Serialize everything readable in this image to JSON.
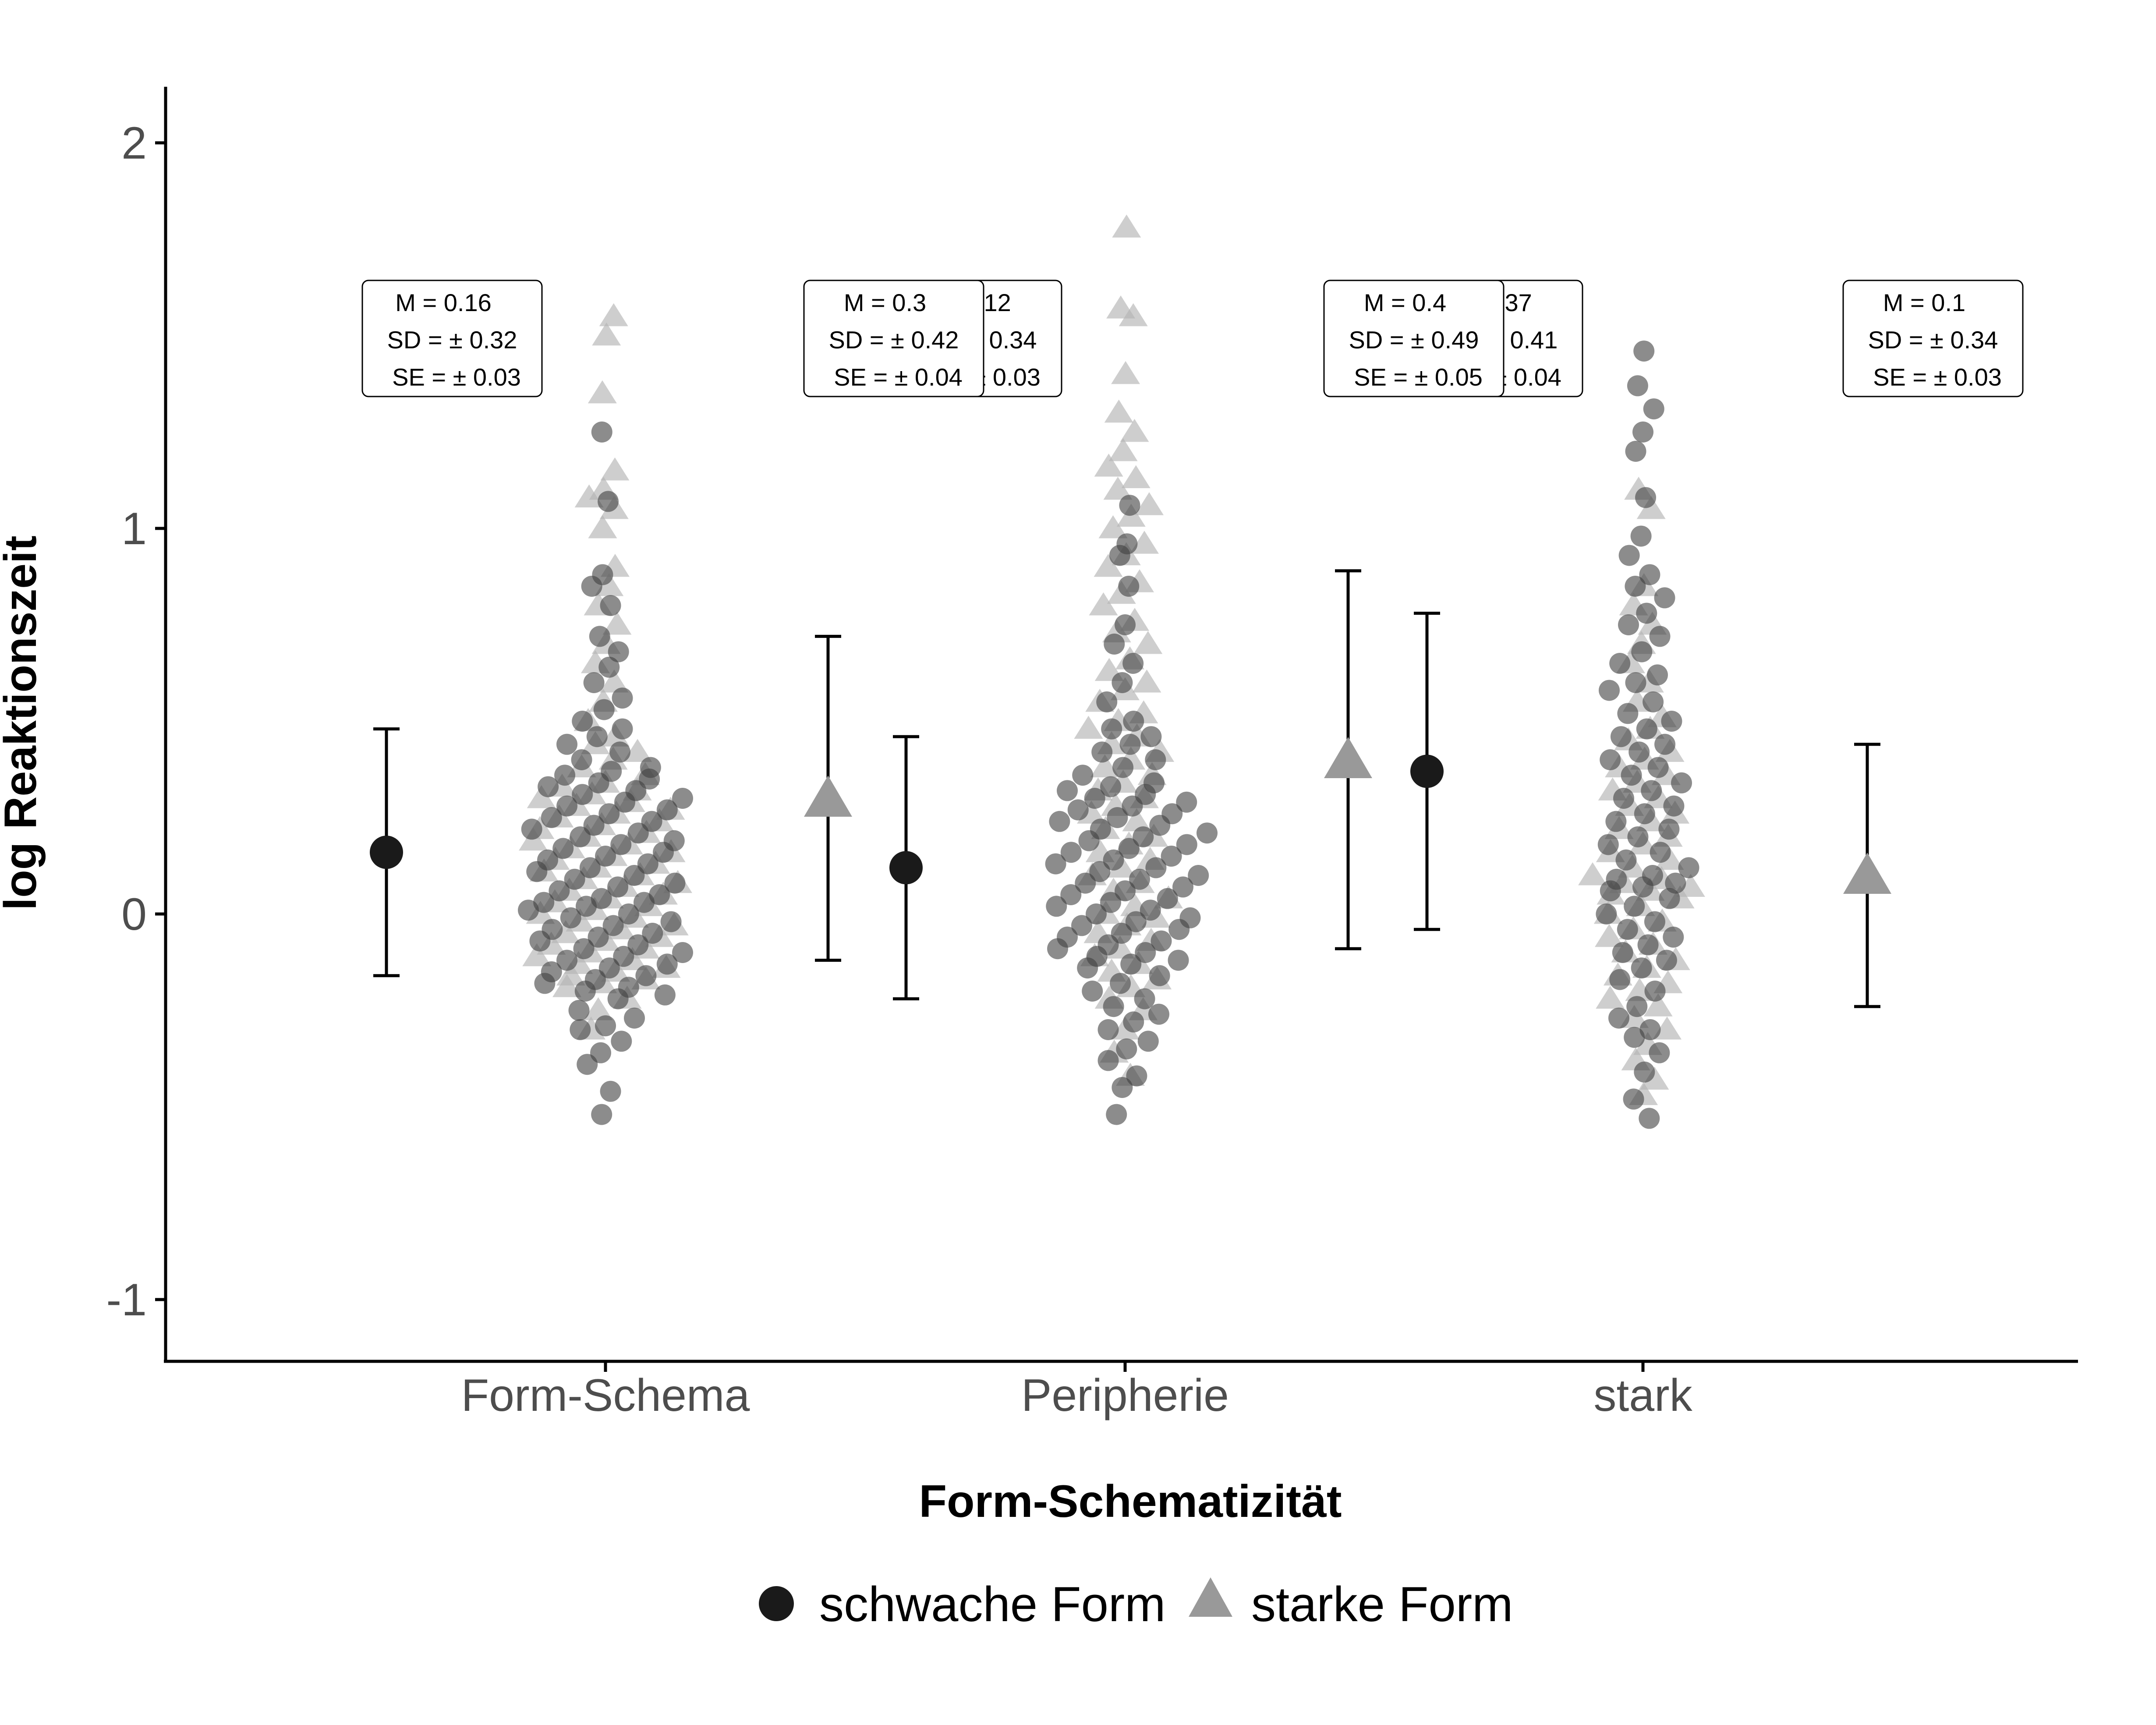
{
  "chart_data": {
    "type": "scatter",
    "xlabel": "Form-Schematizität",
    "ylabel": "log Reaktionszeit",
    "ylim": [
      -1.15,
      2.15
    ],
    "yticks": [
      {
        "value": 2,
        "label": "2"
      },
      {
        "value": 1,
        "label": "1"
      },
      {
        "value": 0,
        "label": "0"
      },
      {
        "value": -1,
        "label": "-1"
      }
    ],
    "categories": [
      "Form-Schema",
      "Peripherie",
      "stark"
    ],
    "legend": {
      "placement": "bottom",
      "items": [
        {
          "label": "schwache Form",
          "shape": "circle",
          "color": "#1a1a1a"
        },
        {
          "label": "starke Form",
          "shape": "triangle",
          "color": "#999999"
        }
      ]
    },
    "colors": {
      "weak_points": "#404040",
      "strong_points": "#b3b3b3",
      "weak_mean": "#1a1a1a",
      "strong_mean": "#999999"
    },
    "series": [
      {
        "name": "schwache Form",
        "shape": "circle",
        "values": [
          {
            "category": "Form-Schema",
            "mean": 0.16,
            "sd": 0.32,
            "se": 0.03,
            "label_m": "M = 0.16",
            "label_sd": "SD = ±  0.32",
            "label_se": "SE = ±  0.03"
          },
          {
            "category": "Peripherie",
            "mean": 0.12,
            "sd": 0.34,
            "se": 0.03,
            "label_m": "M = 0.12",
            "label_sd": "SD = ±  0.34",
            "label_se": "SE = ±  0.03"
          },
          {
            "category": "stark",
            "mean": 0.37,
            "sd": 0.41,
            "se": 0.04,
            "label_m": "M = 0.37",
            "label_sd": "SD = ±  0.41",
            "label_se": "SE = ±  0.04"
          }
        ]
      },
      {
        "name": "starke Form",
        "shape": "triangle",
        "values": [
          {
            "category": "Form-Schema",
            "mean": 0.3,
            "sd": 0.42,
            "se": 0.04,
            "label_m": "M = 0.3",
            "label_sd": "SD = ±  0.42",
            "label_se": "SE = ±  0.04"
          },
          {
            "category": "Peripherie",
            "mean": 0.4,
            "sd": 0.49,
            "se": 0.05,
            "label_m": "M = 0.4",
            "label_sd": "SD = ±  0.49",
            "label_se": "SE = ±  0.05"
          },
          {
            "category": "stark",
            "mean": 0.1,
            "sd": 0.34,
            "se": 0.03,
            "label_m": "M = 0.1",
            "label_sd": "SD = ±  0.34",
            "label_se": "SE = ±  0.03"
          }
        ]
      }
    ],
    "points": {
      "Form-Schema": {
        "weak": [
          -0.52,
          -0.46,
          -0.39,
          -0.36,
          -0.33,
          -0.3,
          -0.29,
          -0.27,
          -0.25,
          -0.22,
          -0.21,
          -0.2,
          -0.19,
          -0.18,
          -0.17,
          -0.16,
          -0.15,
          -0.14,
          -0.13,
          -0.12,
          -0.11,
          -0.1,
          -0.09,
          -0.08,
          -0.07,
          -0.06,
          -0.05,
          -0.04,
          -0.03,
          -0.02,
          -0.01,
          0.0,
          0.01,
          0.02,
          0.03,
          0.03,
          0.04,
          0.05,
          0.06,
          0.07,
          0.08,
          0.09,
          0.1,
          0.11,
          0.12,
          0.13,
          0.14,
          0.15,
          0.16,
          0.17,
          0.18,
          0.19,
          0.2,
          0.21,
          0.22,
          0.23,
          0.24,
          0.25,
          0.26,
          0.27,
          0.28,
          0.29,
          0.3,
          0.31,
          0.32,
          0.33,
          0.34,
          0.35,
          0.36,
          0.37,
          0.38,
          0.4,
          0.42,
          0.44,
          0.46,
          0.48,
          0.5,
          0.53,
          0.56,
          0.6,
          0.64,
          0.68,
          0.72,
          0.8,
          0.85,
          0.88,
          1.07,
          1.25
        ],
        "strong": [
          -0.3,
          -0.25,
          -0.22,
          -0.19,
          -0.18,
          -0.17,
          -0.16,
          -0.15,
          -0.14,
          -0.13,
          -0.12,
          -0.11,
          -0.1,
          -0.09,
          -0.08,
          -0.07,
          -0.06,
          -0.05,
          -0.04,
          -0.03,
          -0.02,
          -0.01,
          0.0,
          0.01,
          0.02,
          0.03,
          0.04,
          0.05,
          0.06,
          0.07,
          0.08,
          0.09,
          0.1,
          0.11,
          0.12,
          0.13,
          0.14,
          0.15,
          0.16,
          0.17,
          0.18,
          0.19,
          0.2,
          0.21,
          0.22,
          0.23,
          0.24,
          0.25,
          0.26,
          0.27,
          0.28,
          0.29,
          0.3,
          0.31,
          0.32,
          0.33,
          0.34,
          0.36,
          0.38,
          0.4,
          0.42,
          0.44,
          0.46,
          0.5,
          0.55,
          0.6,
          0.65,
          0.7,
          0.75,
          0.8,
          0.85,
          0.9,
          1.0,
          1.05,
          1.08,
          1.1,
          1.15,
          1.35,
          1.5,
          1.55
        ]
      },
      "Peripherie": {
        "weak": [
          -0.52,
          -0.45,
          -0.42,
          -0.38,
          -0.35,
          -0.33,
          -0.3,
          -0.28,
          -0.26,
          -0.24,
          -0.22,
          -0.2,
          -0.18,
          -0.16,
          -0.14,
          -0.13,
          -0.12,
          -0.11,
          -0.1,
          -0.09,
          -0.08,
          -0.07,
          -0.06,
          -0.05,
          -0.04,
          -0.03,
          -0.02,
          -0.01,
          0.0,
          0.01,
          0.02,
          0.03,
          0.04,
          0.05,
          0.06,
          0.07,
          0.08,
          0.09,
          0.1,
          0.11,
          0.12,
          0.13,
          0.14,
          0.15,
          0.16,
          0.17,
          0.18,
          0.19,
          0.2,
          0.21,
          0.22,
          0.23,
          0.24,
          0.25,
          0.26,
          0.27,
          0.28,
          0.29,
          0.3,
          0.31,
          0.32,
          0.33,
          0.34,
          0.36,
          0.38,
          0.4,
          0.42,
          0.44,
          0.46,
          0.48,
          0.5,
          0.55,
          0.6,
          0.65,
          0.7,
          0.75,
          0.85,
          0.93,
          0.96,
          1.06
        ],
        "strong": [
          -0.42,
          -0.36,
          -0.3,
          -0.25,
          -0.22,
          -0.19,
          -0.17,
          -0.15,
          -0.13,
          -0.11,
          -0.09,
          -0.07,
          -0.05,
          -0.03,
          -0.01,
          0.0,
          0.02,
          0.04,
          0.06,
          0.08,
          0.1,
          0.12,
          0.14,
          0.16,
          0.18,
          0.2,
          0.22,
          0.24,
          0.26,
          0.28,
          0.3,
          0.32,
          0.34,
          0.36,
          0.38,
          0.4,
          0.42,
          0.44,
          0.46,
          0.48,
          0.5,
          0.52,
          0.55,
          0.58,
          0.6,
          0.63,
          0.66,
          0.7,
          0.73,
          0.76,
          0.8,
          0.83,
          0.86,
          0.9,
          0.93,
          0.96,
          1.0,
          1.03,
          1.06,
          1.1,
          1.13,
          1.16,
          1.2,
          1.25,
          1.3,
          1.4,
          1.55,
          1.57,
          1.78
        ]
      },
      "stark": {
        "weak": [
          -0.53,
          -0.48,
          -0.41,
          -0.36,
          -0.32,
          -0.3,
          -0.27,
          -0.24,
          -0.2,
          -0.17,
          -0.14,
          -0.12,
          -0.1,
          -0.08,
          -0.06,
          -0.04,
          -0.02,
          0.0,
          0.02,
          0.04,
          0.06,
          0.07,
          0.08,
          0.09,
          0.1,
          0.12,
          0.14,
          0.16,
          0.18,
          0.2,
          0.22,
          0.24,
          0.26,
          0.28,
          0.3,
          0.32,
          0.34,
          0.36,
          0.38,
          0.4,
          0.42,
          0.44,
          0.46,
          0.48,
          0.5,
          0.52,
          0.55,
          0.58,
          0.6,
          0.62,
          0.65,
          0.68,
          0.72,
          0.75,
          0.78,
          0.82,
          0.85,
          0.88,
          0.93,
          0.98,
          1.08,
          1.2,
          1.25,
          1.31,
          1.37,
          1.46
        ],
        "strong": [
          -0.47,
          -0.43,
          -0.38,
          -0.34,
          -0.3,
          -0.27,
          -0.24,
          -0.22,
          -0.2,
          -0.18,
          -0.16,
          -0.14,
          -0.12,
          -0.1,
          -0.08,
          -0.06,
          -0.04,
          -0.02,
          0.0,
          0.02,
          0.04,
          0.05,
          0.06,
          0.07,
          0.08,
          0.09,
          0.1,
          0.12,
          0.14,
          0.16,
          0.18,
          0.2,
          0.22,
          0.24,
          0.26,
          0.28,
          0.3,
          0.32,
          0.34,
          0.36,
          0.38,
          0.4,
          0.42,
          0.45,
          0.48,
          0.51,
          0.55,
          0.6,
          0.65,
          0.7,
          0.75,
          0.8,
          0.85,
          1.05,
          1.1
        ]
      }
    }
  }
}
